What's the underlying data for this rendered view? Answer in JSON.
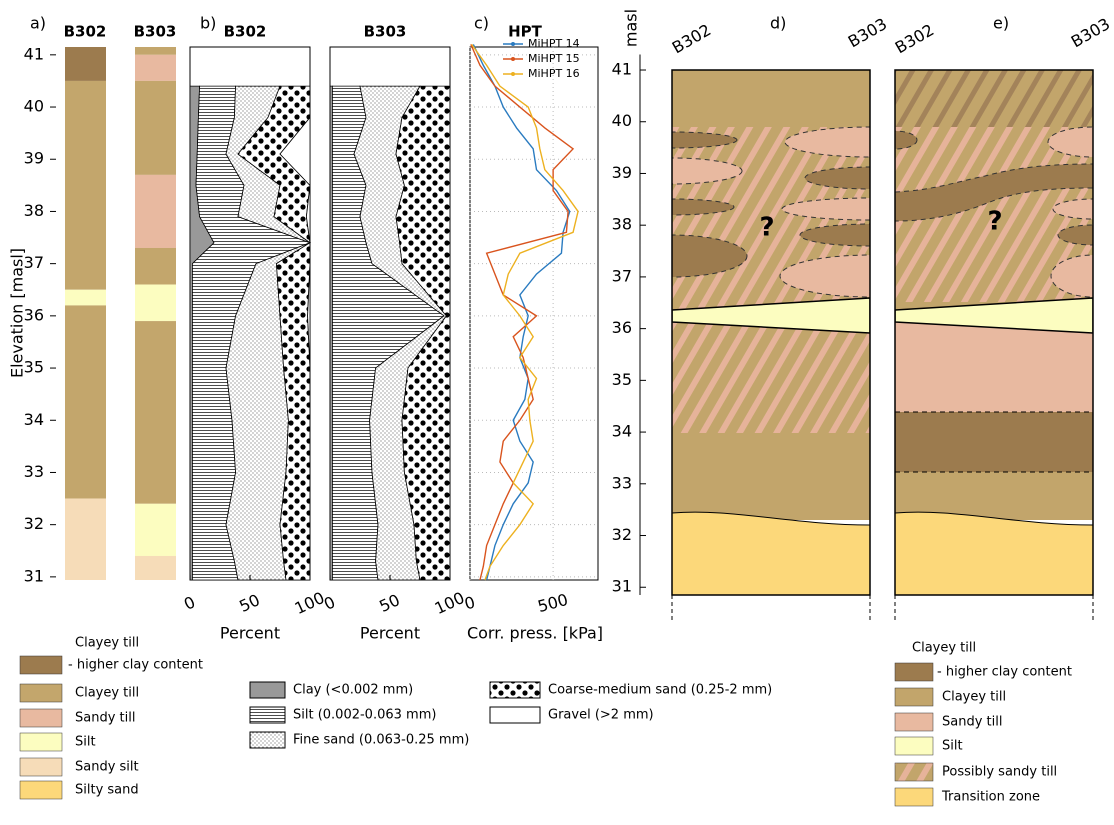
{
  "chart_data": [
    {
      "type": "strip",
      "label": "a)",
      "ylabel": "Elevation [masl]",
      "ylim": [
        30.94,
        41.15
      ],
      "yticks": [
        31,
        32,
        33,
        34,
        35,
        36,
        37,
        38,
        39,
        40,
        41
      ],
      "columns": [
        {
          "name": "B302",
          "intervals": [
            {
              "top": 41.15,
              "bottom": 40.5,
              "color": "#9c7b4e"
            },
            {
              "top": 40.5,
              "bottom": 36.5,
              "color": "#c3a66c"
            },
            {
              "top": 36.5,
              "bottom": 36.2,
              "color": "#fcfdc0"
            },
            {
              "top": 36.2,
              "bottom": 32.5,
              "color": "#c3a66c"
            },
            {
              "top": 32.5,
              "bottom": 30.94,
              "color": "#f6dcb8"
            }
          ]
        },
        {
          "name": "B303",
          "intervals": [
            {
              "top": 41.15,
              "bottom": 41.0,
              "color": "#c3a66c"
            },
            {
              "top": 41.0,
              "bottom": 40.5,
              "color": "#e8b9a0"
            },
            {
              "top": 40.5,
              "bottom": 38.7,
              "color": "#c3a66c"
            },
            {
              "top": 38.7,
              "bottom": 37.3,
              "color": "#e8b9a0"
            },
            {
              "top": 37.3,
              "bottom": 36.6,
              "color": "#c3a66c"
            },
            {
              "top": 36.6,
              "bottom": 35.9,
              "color": "#fcfdc0"
            },
            {
              "top": 35.9,
              "bottom": 32.4,
              "color": "#c3a66c"
            },
            {
              "top": 32.4,
              "bottom": 31.4,
              "color": "#fcfdc0"
            },
            {
              "top": 31.4,
              "bottom": 30.94,
              "color": "#f6dcb8"
            }
          ]
        }
      ],
      "units": [
        {
          "name": "Clayey till",
          "note": "- higher clay content",
          "color": "#9c7b4e"
        },
        {
          "name": "Clayey till",
          "color": "#c3a66c"
        },
        {
          "name": "Sandy till",
          "color": "#e8b9a0"
        },
        {
          "name": "Silt",
          "color": "#fcfdc0"
        },
        {
          "name": "Sandy silt",
          "color": "#f6dcb8"
        },
        {
          "name": "Silty sand",
          "color": "#fcd87a"
        }
      ]
    },
    {
      "type": "area",
      "label": "b)",
      "xlabel": "Percent",
      "xlim": [
        0,
        100
      ],
      "xticks": [
        0,
        50,
        100
      ],
      "ylim": [
        30.94,
        41.15
      ],
      "elevation": [
        40.4,
        39.8,
        39.1,
        38.5,
        37.9,
        37.4,
        37.0,
        36.0,
        35.0,
        34.0,
        33.0,
        32.0,
        31.3,
        30.94
      ],
      "series": [
        {
          "name": "Clay (<0.002 mm)",
          "color": "#999999",
          "pattern": "solid"
        },
        {
          "name": "Silt (0.002-0.063 mm)",
          "color": "#000000",
          "pattern": "lines"
        },
        {
          "name": "Fine sand (0.063-0.25 mm)",
          "color": "#000000",
          "pattern": "fine-dots"
        },
        {
          "name": "Coarse-medium sand (0.25-2 mm)",
          "color": "#000000",
          "pattern": "coarse-dots"
        },
        {
          "name": "Gravel (>2 mm)",
          "color": "#ffffff",
          "pattern": "solid"
        }
      ],
      "columns": [
        {
          "name": "B302",
          "values": [
            [
              8,
              7,
              6,
              5,
              8,
              20,
              2,
              2,
              2,
              2,
              2,
              2,
              2,
              2
            ],
            [
              30,
              30,
              24,
              40,
              32,
              80,
              53,
              36,
              28,
              33,
              36,
              28,
              35,
              38
            ],
            [
              37,
              28,
              10,
              30,
              30,
              0,
              17,
              37,
              48,
              47,
              42,
              45,
              41,
              40
            ],
            [
              25,
              35,
              35,
              25,
              27,
              0,
              28,
              23,
              22,
              18,
              20,
              25,
              22,
              20
            ],
            [
              0,
              0,
              25,
              0,
              3,
              0,
              0,
              2,
              0,
              0,
              0,
              0,
              0,
              0
            ]
          ]
        },
        {
          "name": "B303",
          "values": [
            [
              2,
              2,
              2,
              2,
              2,
              2,
              2,
              2,
              2,
              2,
              2,
              2,
              2,
              2
            ],
            [
              23,
              28,
              18,
              28,
              23,
              28,
              33,
              93,
              36,
              31,
              33,
              38,
              36,
              38
            ],
            [
              50,
              30,
              35,
              32,
              30,
              28,
              25,
              2,
              27,
              27,
              27,
              30,
              34,
              35
            ],
            [
              25,
              40,
              45,
              38,
              45,
              42,
              40,
              3,
              35,
              40,
              38,
              30,
              28,
              25
            ],
            [
              0,
              0,
              0,
              0,
              0,
              0,
              0,
              0,
              0,
              0,
              0,
              0,
              0,
              0
            ]
          ]
        }
      ]
    },
    {
      "type": "line",
      "label": "c)",
      "title": "HPT",
      "xlabel": "Corr. press. [kPa]",
      "xlim": [
        0,
        770
      ],
      "xticks": [
        0,
        500
      ],
      "ylim": [
        30.94,
        41.15
      ],
      "yticks": [
        31,
        32,
        33,
        34,
        35,
        36,
        37,
        38,
        39,
        40,
        41
      ],
      "grid": true,
      "elevation": [
        41.2,
        40.8,
        40.4,
        40.0,
        39.6,
        39.2,
        38.8,
        38.4,
        38.0,
        37.6,
        37.2,
        36.8,
        36.4,
        36.0,
        35.6,
        35.2,
        34.8,
        34.4,
        34.0,
        33.6,
        33.2,
        32.8,
        32.4,
        32.0,
        31.6,
        31.2,
        30.94
      ],
      "series": [
        {
          "name": "MiHPT 14",
          "color": "#2a7bc0",
          "values": [
            20,
            80,
            150,
            200,
            280,
            380,
            400,
            520,
            600,
            560,
            550,
            400,
            300,
            350,
            320,
            300,
            350,
            330,
            260,
            300,
            380,
            350,
            260,
            200,
            150,
            120,
            100
          ]
        },
        {
          "name": "MiHPT 15",
          "color": "#d9541e",
          "values": [
            5,
            60,
            150,
            300,
            450,
            620,
            500,
            500,
            590,
            580,
            100,
            150,
            200,
            400,
            260,
            320,
            350,
            380,
            300,
            200,
            180,
            260,
            200,
            150,
            100,
            80,
            60
          ]
        },
        {
          "name": "MiHPT 16",
          "color": "#edb120",
          "values": [
            10,
            100,
            180,
            350,
            400,
            420,
            450,
            560,
            650,
            620,
            300,
            230,
            200,
            300,
            380,
            300,
            400,
            350,
            360,
            380,
            320,
            260,
            380,
            300,
            200,
            120,
            90
          ]
        }
      ]
    },
    {
      "type": "section",
      "label": "d)",
      "ylabel": "masl",
      "annotation": "?",
      "ylim": [
        30.85,
        41.3
      ],
      "yticks": [
        31,
        32,
        33,
        34,
        35,
        36,
        37,
        38,
        39,
        40,
        41
      ],
      "boreholes": [
        "B302",
        "B303"
      ],
      "legend": [
        {
          "name": "Clayey till",
          "note": "- higher clay content",
          "color": "#9c7b4e"
        },
        {
          "name": "Clayey till",
          "color": "#c2a56b"
        },
        {
          "name": "Sandy till",
          "color": "#e8b9a0"
        },
        {
          "name": "Silt",
          "color": "#fcfdc0"
        },
        {
          "name": "Possibly sandy till",
          "color": "#e6b39a",
          "pattern": "hatch"
        },
        {
          "name": "Transition zone",
          "color": "#fcd87a"
        }
      ]
    },
    {
      "type": "section",
      "label": "e)",
      "annotation": "?",
      "ylim": [
        30.85,
        41.3
      ],
      "boreholes": [
        "B302",
        "B303"
      ]
    }
  ]
}
